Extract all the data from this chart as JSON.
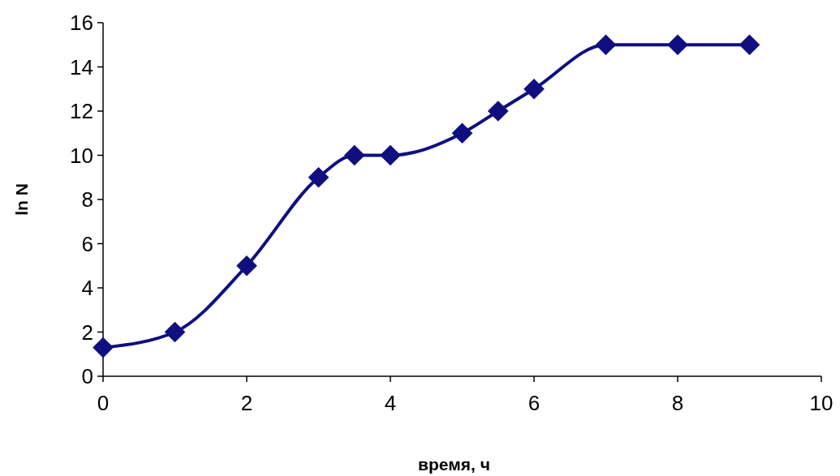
{
  "chart_data": {
    "type": "line",
    "xlabel": "время, ч",
    "ylabel": "ln N",
    "x": [
      0,
      1,
      2,
      3,
      3.5,
      4,
      5,
      5.5,
      6,
      7,
      8,
      9
    ],
    "series": [
      {
        "color": "#0f0f80",
        "values": [
          1.3,
          2,
          5,
          9,
          10,
          10,
          11,
          12,
          13,
          15,
          15,
          15
        ]
      }
    ],
    "xlim": [
      0,
      10
    ],
    "xticks": [
      0,
      2,
      4,
      6,
      8,
      10
    ],
    "ylim": [
      0,
      16
    ],
    "yticks": [
      0,
      2,
      4,
      6,
      8,
      10,
      12,
      14,
      16
    ],
    "marker": "diamond",
    "line_style": "solid"
  }
}
